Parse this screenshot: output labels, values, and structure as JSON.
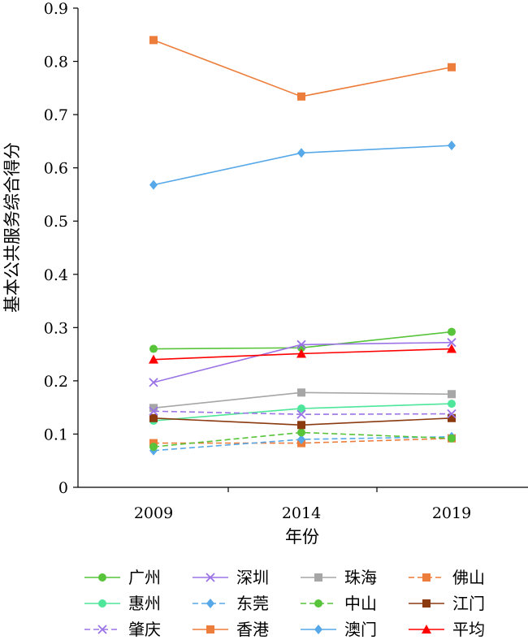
{
  "chart_data": {
    "type": "line",
    "title": "",
    "xlabel": "年份",
    "ylabel": "基本公共服务综合得分",
    "categories": [
      "2009",
      "2014",
      "2019"
    ],
    "ylim": [
      0,
      0.9
    ],
    "yticks": [
      "0",
      "0.1",
      "0.2",
      "0.3",
      "0.4",
      "0.5",
      "0.6",
      "0.7",
      "0.8",
      "0.9"
    ],
    "grid": false,
    "legend_position": "bottom",
    "series": [
      {
        "name": "广州",
        "values": [
          0.26,
          0.262,
          0.292
        ],
        "color": "#57c43a",
        "marker": "circle",
        "dashed": false
      },
      {
        "name": "深圳",
        "values": [
          0.197,
          0.268,
          0.272
        ],
        "color": "#9b73e6",
        "marker": "x",
        "dashed": false
      },
      {
        "name": "珠海",
        "values": [
          0.149,
          0.178,
          0.175
        ],
        "color": "#a6a6a6",
        "marker": "square",
        "dashed": false
      },
      {
        "name": "佛山",
        "values": [
          0.083,
          0.083,
          0.092
        ],
        "color": "#ed7d3a",
        "marker": "square",
        "dashed": true
      },
      {
        "name": "惠州",
        "values": [
          0.125,
          0.148,
          0.157
        ],
        "color": "#4ee69a",
        "marker": "circle",
        "dashed": false
      },
      {
        "name": "东莞",
        "values": [
          0.069,
          0.09,
          0.095
        ],
        "color": "#56a8e8",
        "marker": "diamond",
        "dashed": true
      },
      {
        "name": "中山",
        "values": [
          0.076,
          0.103,
          0.092
        ],
        "color": "#57c43a",
        "marker": "circle",
        "dashed": true
      },
      {
        "name": "江门",
        "values": [
          0.13,
          0.117,
          0.13
        ],
        "color": "#8b3a10",
        "marker": "square",
        "dashed": false
      },
      {
        "name": "肇庆",
        "values": [
          0.143,
          0.137,
          0.138
        ],
        "color": "#9b73e6",
        "marker": "x",
        "dashed": true
      },
      {
        "name": "香港",
        "values": [
          0.84,
          0.734,
          0.789
        ],
        "color": "#ed7d3a",
        "marker": "square",
        "dashed": false
      },
      {
        "name": "澳门",
        "values": [
          0.568,
          0.628,
          0.642
        ],
        "color": "#56a8e8",
        "marker": "diamond",
        "dashed": false
      },
      {
        "name": "平均",
        "values": [
          0.24,
          0.251,
          0.26
        ],
        "color": "#ff0000",
        "marker": "triangle",
        "dashed": false
      }
    ]
  }
}
